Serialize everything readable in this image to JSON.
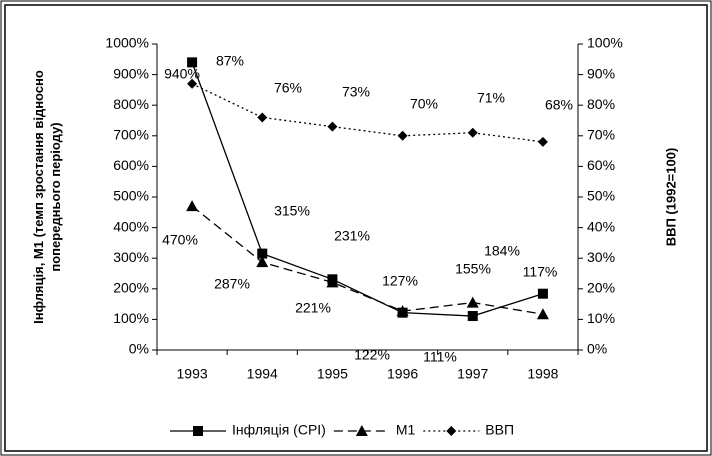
{
  "chart_data": {
    "type": "line",
    "y_label": "Інфляція, М1 (темп зростання відносно попереднього періоду)",
    "y2_label": "ВВП (1992=100)",
    "categories": [
      "1993",
      "1994",
      "1995",
      "1996",
      "1997",
      "1998"
    ],
    "series": [
      {
        "name": "Інфляція (CPI)",
        "color": "#000000",
        "marker": "square",
        "dash": "solid",
        "values": [
          940,
          315,
          231,
          122,
          111,
          184
        ],
        "value_labels": [
          "940%",
          "315%",
          "231%",
          "122%",
          "111%",
          "184%"
        ]
      },
      {
        "name": "М1",
        "color": "#000000",
        "marker": "triangle",
        "dash": "dashed",
        "values": [
          470,
          287,
          221,
          127,
          155,
          117
        ],
        "value_labels": [
          "470%",
          "287%",
          "221%",
          "127%",
          "155%",
          "117%"
        ]
      },
      {
        "name": "ВВП",
        "color": "#000000",
        "marker": "diamond",
        "dash": "dotted",
        "axis": "y2",
        "values": [
          87,
          76,
          73,
          70,
          71,
          68
        ],
        "value_labels": [
          "87%",
          "76%",
          "73%",
          "70%",
          "71%",
          "68%"
        ]
      }
    ],
    "ylim": [
      0,
      1000
    ],
    "yticks": [
      {
        "value": 0,
        "label": "0%"
      },
      {
        "value": 100,
        "label": "100%"
      },
      {
        "value": 200,
        "label": "200%"
      },
      {
        "value": 300,
        "label": "300%"
      },
      {
        "value": 400,
        "label": "400%"
      },
      {
        "value": 500,
        "label": "500%"
      },
      {
        "value": 600,
        "label": "600%"
      },
      {
        "value": 700,
        "label": "700%"
      },
      {
        "value": 800,
        "label": "800%"
      },
      {
        "value": 900,
        "label": "900%"
      },
      {
        "value": 1000,
        "label": "1000%"
      }
    ],
    "y2lim": [
      0,
      100
    ],
    "y2ticks": [
      {
        "value": 0,
        "label": "0%"
      },
      {
        "value": 10,
        "label": "10%"
      },
      {
        "value": 20,
        "label": "20%"
      },
      {
        "value": 30,
        "label": "30%"
      },
      {
        "value": 40,
        "label": "40%"
      },
      {
        "value": 50,
        "label": "50%"
      },
      {
        "value": 60,
        "label": "60%"
      },
      {
        "value": 70,
        "label": "70%"
      },
      {
        "value": 80,
        "label": "80%"
      },
      {
        "value": 90,
        "label": "90%"
      },
      {
        "value": 100,
        "label": "100%"
      }
    ],
    "legend": "bottom"
  }
}
